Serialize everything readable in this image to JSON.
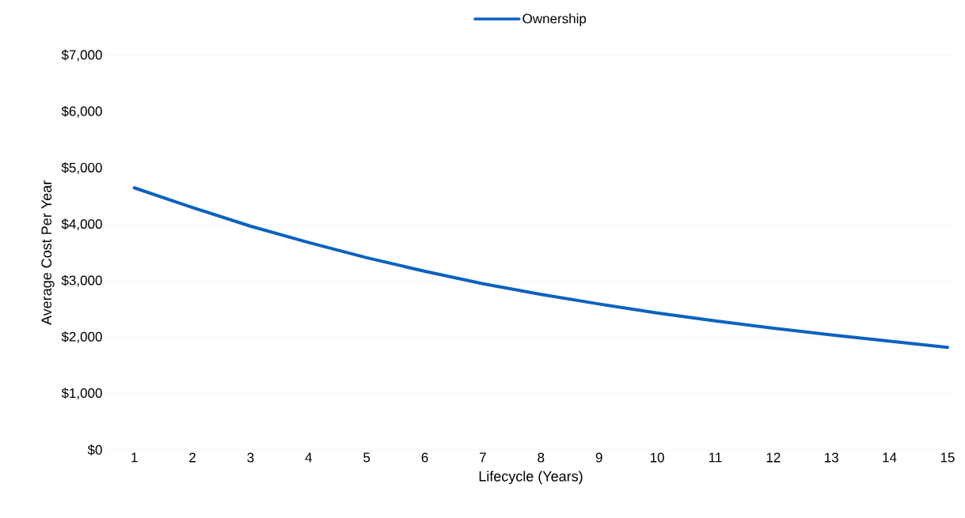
{
  "chart_data": {
    "type": "line",
    "xlabel": "Lifecycle (Years)",
    "ylabel": "Average Cost Per Year",
    "x": [
      1,
      2,
      3,
      4,
      5,
      6,
      7,
      8,
      9,
      10,
      11,
      12,
      13,
      14,
      15
    ],
    "series": [
      {
        "name": "Ownership",
        "color": "#0b62c0",
        "values": [
          4650,
          4300,
          3970,
          3680,
          3410,
          3170,
          2950,
          2760,
          2590,
          2430,
          2290,
          2160,
          2040,
          1930,
          1820
        ]
      }
    ],
    "xlim": [
      0.5,
      15.15
    ],
    "xticks": [
      1,
      2,
      3,
      4,
      5,
      6,
      7,
      8,
      9,
      10,
      11,
      12,
      13,
      14,
      15
    ],
    "ylim": [
      0,
      7000
    ],
    "yticks": [
      {
        "value": 0,
        "label": "$0"
      },
      {
        "value": 1000,
        "label": "$1,000"
      },
      {
        "value": 2000,
        "label": "$2,000"
      },
      {
        "value": 3000,
        "label": "$3,000"
      },
      {
        "value": 4000,
        "label": "$4,000"
      },
      {
        "value": 5000,
        "label": "$5,000"
      },
      {
        "value": 6000,
        "label": "$6,000"
      },
      {
        "value": 7000,
        "label": "$7,000"
      }
    ],
    "grid": "y",
    "legend": "top",
    "marker": "none",
    "line_style": "solid"
  }
}
